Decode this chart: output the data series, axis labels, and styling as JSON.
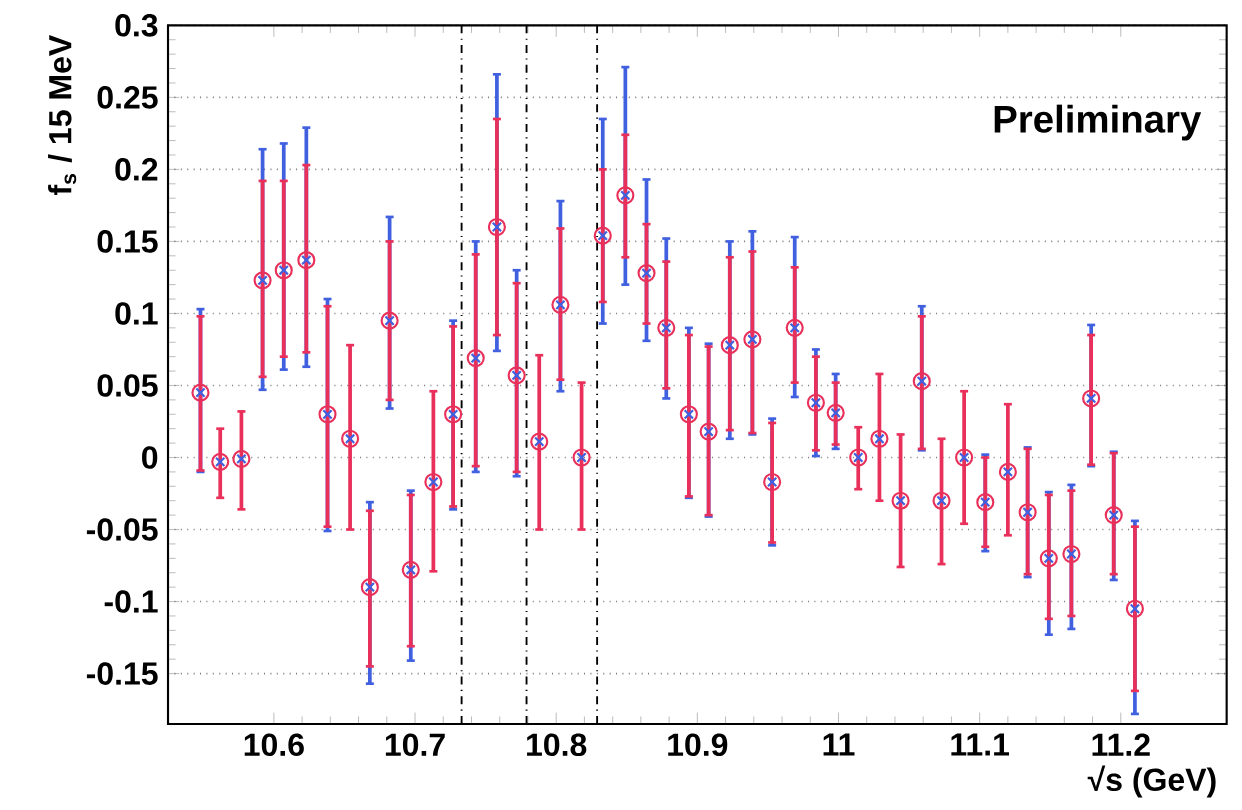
{
  "chart_data": {
    "type": "scatter",
    "xlabel": "√s (GeV)",
    "ylabel": "f$_{s}$ / 15 MeV",
    "x": [
      10.548,
      10.562,
      10.577,
      10.592,
      10.607,
      10.623,
      10.638,
      10.654,
      10.668,
      10.682,
      10.697,
      10.713,
      10.727,
      10.743,
      10.758,
      10.772,
      10.788,
      10.803,
      10.818,
      10.833,
      10.849,
      10.864,
      10.878,
      10.894,
      10.908,
      10.923,
      10.939,
      10.953,
      10.969,
      10.984,
      10.998,
      11.014,
      11.029,
      11.044,
      11.059,
      11.073,
      11.089,
      11.104,
      11.12,
      11.134,
      11.149,
      11.165,
      11.179,
      11.195,
      11.21
    ],
    "series": [
      {
        "color": "#4060e0",
        "marker": "cross",
        "values": [
          0.045,
          -0.003,
          -0.001,
          0.123,
          0.13,
          0.137,
          0.03,
          0.013,
          -0.09,
          0.095,
          -0.078,
          -0.017,
          0.03,
          0.069,
          0.16,
          0.057,
          0.011,
          0.106,
          0.0,
          0.154,
          0.182,
          0.128,
          0.09,
          0.03,
          0.018,
          0.078,
          0.082,
          -0.017,
          0.09,
          0.038,
          0.031,
          0.0,
          0.013,
          -0.03,
          0.053,
          -0.03,
          0.0,
          -0.031,
          -0.01,
          -0.038,
          -0.07,
          -0.067,
          0.041,
          -0.04,
          -0.105
        ],
        "errors": [
          [
            -0.01,
            0.103
          ],
          null,
          null,
          [
            0.047,
            0.214
          ],
          [
            0.061,
            0.218
          ],
          [
            0.063,
            0.229
          ],
          [
            -0.051,
            0.11
          ],
          null,
          [
            -0.157,
            -0.031
          ],
          [
            0.034,
            0.167
          ],
          [
            -0.141,
            -0.023
          ],
          null,
          [
            -0.036,
            0.095
          ],
          [
            -0.01,
            0.15
          ],
          [
            0.074,
            0.266
          ],
          [
            -0.013,
            0.13
          ],
          null,
          [
            0.046,
            0.178
          ],
          null,
          [
            0.093,
            0.235
          ],
          [
            0.12,
            0.271
          ],
          [
            0.081,
            0.193
          ],
          [
            0.041,
            0.152
          ],
          [
            -0.028,
            0.09
          ],
          [
            -0.041,
            0.079
          ],
          [
            0.013,
            0.15
          ],
          [
            0.016,
            0.157
          ],
          [
            -0.061,
            0.027
          ],
          [
            0.042,
            0.153
          ],
          [
            0.001,
            0.075
          ],
          [
            0.006,
            0.058
          ],
          null,
          null,
          null,
          [
            0.005,
            0.105
          ],
          null,
          null,
          [
            -0.065,
            0.002
          ],
          null,
          [
            -0.083,
            0.007
          ],
          [
            -0.123,
            -0.024
          ],
          [
            -0.119,
            -0.019
          ],
          [
            -0.006,
            0.092
          ],
          [
            -0.085,
            0.004
          ],
          [
            -0.178,
            -0.044
          ]
        ]
      },
      {
        "color": "#e8305a",
        "marker": "circle",
        "values": [
          0.045,
          -0.003,
          -0.001,
          0.123,
          0.13,
          0.137,
          0.03,
          0.013,
          -0.09,
          0.095,
          -0.078,
          -0.017,
          0.03,
          0.069,
          0.16,
          0.057,
          0.011,
          0.106,
          0.0,
          0.154,
          0.182,
          0.128,
          0.09,
          0.03,
          0.018,
          0.078,
          0.082,
          -0.017,
          0.09,
          0.038,
          0.031,
          0.0,
          0.013,
          -0.03,
          0.053,
          -0.03,
          0.0,
          -0.031,
          -0.01,
          -0.038,
          -0.07,
          -0.067,
          0.041,
          -0.04,
          -0.105
        ],
        "errors": [
          [
            -0.009,
            0.098
          ],
          [
            -0.028,
            0.02
          ],
          [
            -0.036,
            0.032
          ],
          [
            0.056,
            0.192
          ],
          [
            0.07,
            0.192
          ],
          [
            0.073,
            0.203
          ],
          [
            -0.048,
            0.105
          ],
          [
            -0.05,
            0.078
          ],
          [
            -0.145,
            -0.037
          ],
          [
            0.04,
            0.15
          ],
          [
            -0.131,
            -0.026
          ],
          [
            -0.079,
            0.046
          ],
          [
            -0.034,
            0.091
          ],
          [
            -0.006,
            0.141
          ],
          [
            0.085,
            0.235
          ],
          [
            -0.01,
            0.121
          ],
          [
            -0.05,
            0.071
          ],
          [
            0.054,
            0.159
          ],
          [
            -0.05,
            0.052
          ],
          [
            0.108,
            0.2
          ],
          [
            0.139,
            0.224
          ],
          [
            0.093,
            0.162
          ],
          [
            0.048,
            0.136
          ],
          [
            -0.027,
            0.085
          ],
          [
            -0.04,
            0.077
          ],
          [
            0.019,
            0.139
          ],
          [
            0.017,
            0.143
          ],
          [
            -0.059,
            0.024
          ],
          [
            0.052,
            0.132
          ],
          [
            0.005,
            0.07
          ],
          [
            0.009,
            0.052
          ],
          [
            -0.022,
            0.021
          ],
          [
            -0.03,
            0.058
          ],
          [
            -0.076,
            0.016
          ],
          [
            0.006,
            0.098
          ],
          [
            -0.074,
            0.013
          ],
          [
            -0.046,
            0.046
          ],
          [
            -0.062,
            0.0
          ],
          [
            -0.054,
            0.037
          ],
          [
            -0.081,
            0.006
          ],
          [
            -0.112,
            -0.026
          ],
          [
            -0.11,
            -0.023
          ],
          [
            -0.005,
            0.085
          ],
          [
            -0.081,
            0.003
          ],
          [
            -0.162,
            -0.048
          ]
        ]
      }
    ],
    "xlim": [
      10.525,
      11.275
    ],
    "xticks": [
      10.6,
      10.7,
      10.8,
      10.9,
      11,
      11.1,
      11.2
    ],
    "ylim": [
      -0.185,
      0.3
    ],
    "yticks": [
      -0.15,
      -0.1,
      -0.05,
      0,
      0.05,
      0.1,
      0.15,
      0.2,
      0.25,
      0.3
    ],
    "grid": "y",
    "ref_lines": [
      {
        "axis": "x",
        "value": 10.733,
        "color": "#000000",
        "line_style": "dashed"
      },
      {
        "axis": "x",
        "value": 10.779,
        "color": "#000000",
        "line_style": "dashed"
      },
      {
        "axis": "x",
        "value": 10.829,
        "color": "#000000",
        "line_style": "dashed"
      }
    ],
    "annotations": [
      "Preliminary"
    ]
  }
}
